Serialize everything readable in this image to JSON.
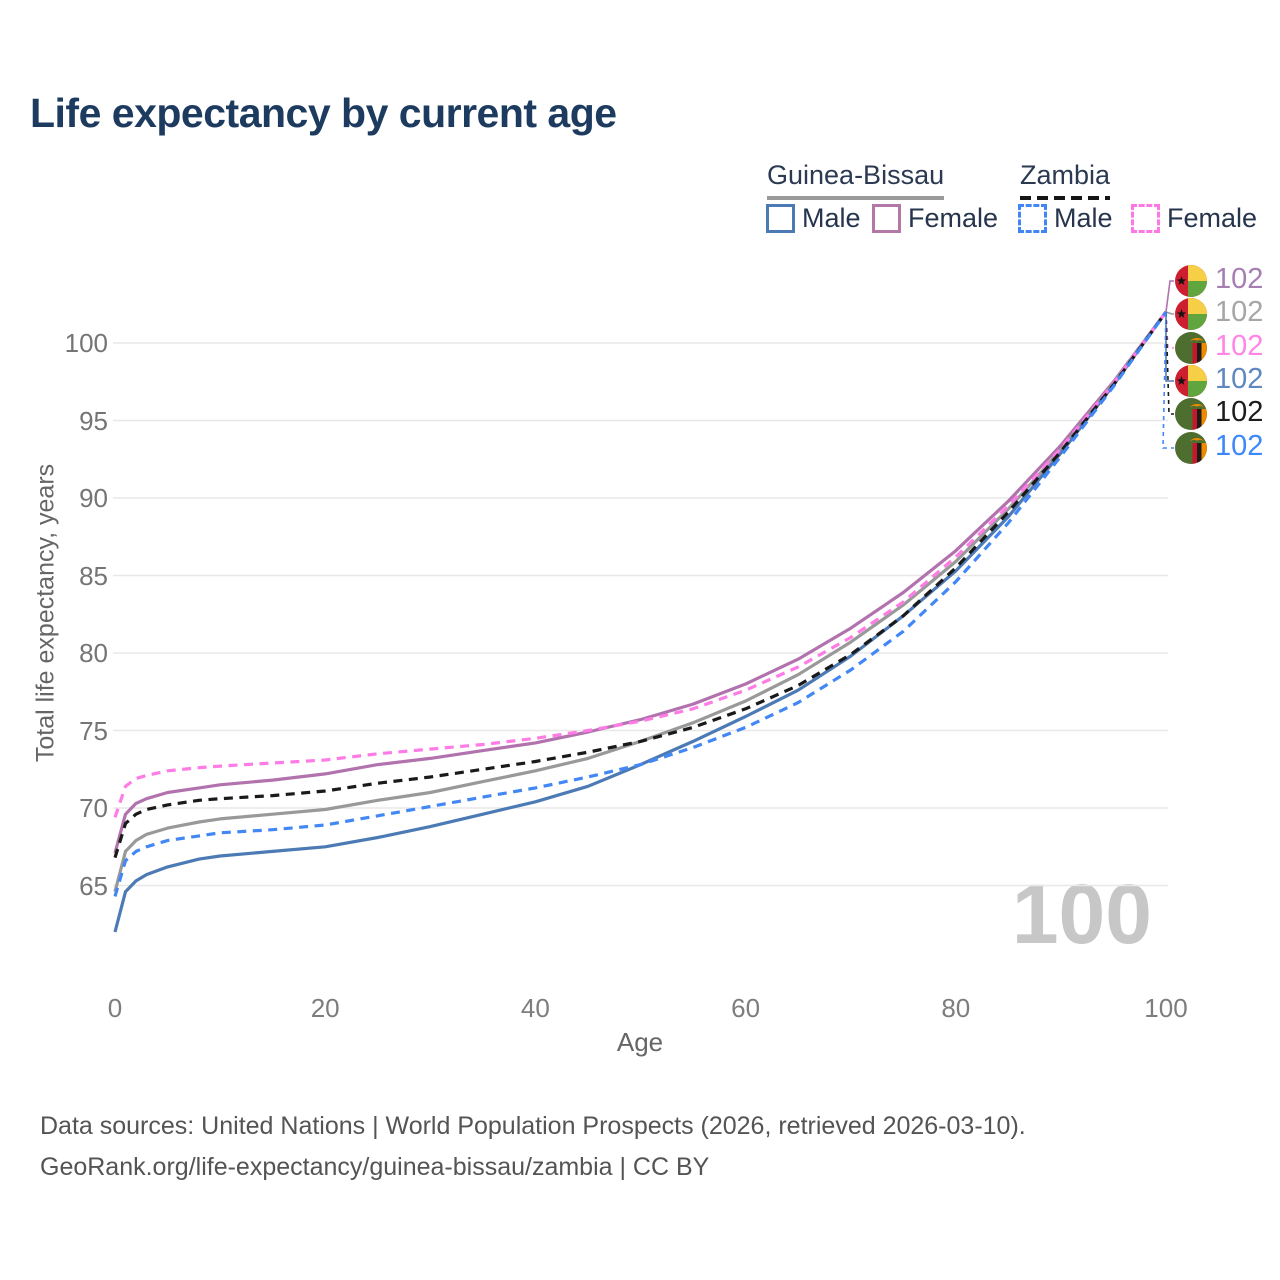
{
  "title": "Life expectancy by current age",
  "legend": {
    "groups": [
      {
        "country": "Guinea-Bissau",
        "line_style": "solid",
        "rule_color": "#9a9a9a"
      },
      {
        "country": "Zambia",
        "line_style": "dashed",
        "rule_color": "#151515"
      }
    ],
    "items": [
      {
        "label": "Male",
        "color": "#4c7ab5",
        "dash": false
      },
      {
        "label": "Female",
        "color": "#b478a8",
        "dash": false
      },
      {
        "label": "Male",
        "color": "#4285f4",
        "dash": true
      },
      {
        "label": "Female",
        "color": "#ff77e4",
        "dash": true
      }
    ]
  },
  "chart_data": {
    "type": "line",
    "title": "Life expectancy by current age",
    "xlabel": "Age",
    "ylabel": "Total life expectancy, years",
    "xlim": [
      0,
      100
    ],
    "ylim": [
      62,
      102
    ],
    "xticks": [
      0,
      20,
      40,
      60,
      80,
      100
    ],
    "yticks": [
      65,
      70,
      75,
      80,
      85,
      90,
      95,
      100
    ],
    "grid": "horizontal",
    "legend_position": "top-right",
    "x": [
      0,
      1,
      2,
      3,
      5,
      8,
      10,
      15,
      20,
      25,
      30,
      35,
      40,
      45,
      50,
      55,
      60,
      65,
      70,
      75,
      80,
      85,
      90,
      95,
      100
    ],
    "series": [
      {
        "name": "Guinea-Bissau Female",
        "color": "#b172ae",
        "dash": false,
        "values": [
          67.1,
          69.6,
          70.3,
          70.6,
          71.0,
          71.3,
          71.5,
          71.8,
          72.2,
          72.8,
          73.2,
          73.7,
          74.2,
          74.9,
          75.7,
          76.7,
          78.0,
          79.6,
          81.6,
          83.9,
          86.6,
          89.8,
          93.4,
          97.5,
          102
        ]
      },
      {
        "name": "Guinea-Bissau Both sexes",
        "color": "#999999",
        "dash": false,
        "values": [
          64.6,
          67.2,
          67.9,
          68.3,
          68.7,
          69.1,
          69.3,
          69.6,
          69.9,
          70.5,
          71.0,
          71.7,
          72.4,
          73.2,
          74.3,
          75.5,
          76.9,
          78.6,
          80.7,
          83.1,
          85.9,
          89.3,
          93.1,
          97.4,
          102
        ]
      },
      {
        "name": "Guinea-Bissau Male",
        "color": "#4c7ab5",
        "dash": false,
        "values": [
          62.0,
          64.6,
          65.3,
          65.7,
          66.2,
          66.7,
          66.9,
          67.2,
          67.5,
          68.1,
          68.8,
          69.6,
          70.4,
          71.4,
          72.8,
          74.3,
          75.9,
          77.6,
          79.8,
          82.4,
          85.3,
          88.8,
          92.9,
          97.3,
          102
        ]
      },
      {
        "name": "Zambia Female",
        "color": "#ff7ce6",
        "dash": true,
        "values": [
          69.4,
          71.4,
          71.9,
          72.1,
          72.4,
          72.6,
          72.7,
          72.9,
          73.1,
          73.5,
          73.8,
          74.1,
          74.5,
          75.0,
          75.6,
          76.4,
          77.6,
          79.1,
          81.0,
          83.3,
          86.2,
          89.5,
          93.2,
          97.4,
          102
        ]
      },
      {
        "name": "Zambia Both sexes",
        "color": "#1a1a1a",
        "dash": true,
        "values": [
          66.8,
          69.0,
          69.6,
          69.9,
          70.2,
          70.5,
          70.6,
          70.8,
          71.1,
          71.6,
          72.0,
          72.5,
          73.0,
          73.6,
          74.3,
          75.2,
          76.4,
          77.9,
          79.9,
          82.4,
          85.5,
          89.1,
          93.0,
          97.3,
          102
        ]
      },
      {
        "name": "Zambia Male",
        "color": "#4287f5",
        "dash": true,
        "values": [
          64.3,
          66.6,
          67.2,
          67.5,
          67.9,
          68.2,
          68.4,
          68.6,
          68.9,
          69.5,
          70.1,
          70.7,
          71.3,
          72.0,
          72.8,
          73.9,
          75.2,
          76.8,
          78.9,
          81.4,
          84.6,
          88.4,
          92.7,
          97.2,
          102
        ]
      }
    ],
    "endpoints": [
      {
        "series": "Guinea-Bissau Female",
        "flag": "guinea-bissau",
        "value": "102",
        "label_color": "#a77eb3"
      },
      {
        "series": "Guinea-Bissau Both sexes",
        "flag": "guinea-bissau",
        "value": "102",
        "label_color": "#a6a6a6"
      },
      {
        "series": "Zambia Female",
        "flag": "zambia",
        "value": "102",
        "label_color": "#ff85e8"
      },
      {
        "series": "Guinea-Bissau Male",
        "flag": "guinea-bissau",
        "value": "102",
        "label_color": "#5f87c0"
      },
      {
        "series": "Zambia Both sexes",
        "flag": "zambia",
        "value": "102",
        "label_color": "#1c1c1c"
      },
      {
        "series": "Zambia Male",
        "flag": "zambia",
        "value": "102",
        "label_color": "#3c87fa"
      }
    ]
  },
  "watermark": "100",
  "footer": {
    "line1": "Data sources: United Nations | World Population Prospects (2026, retrieved 2026-03-10).",
    "line2": "GeoRank.org/life-expectancy/guinea-bissau/zambia | CC BY"
  }
}
